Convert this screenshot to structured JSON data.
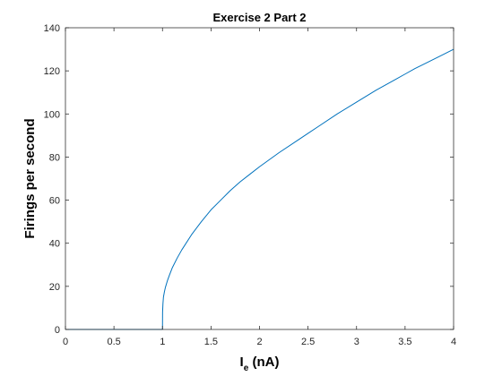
{
  "chart_data": {
    "type": "line",
    "title": "Exercise 2 Part 2",
    "xlabel": {
      "main": "I",
      "subscript": "e",
      "suffix": " (nA)"
    },
    "ylabel": "Firings per second",
    "xlim": [
      0,
      4
    ],
    "ylim": [
      0,
      140
    ],
    "xticks": [
      0,
      0.5,
      1,
      1.5,
      2,
      2.5,
      3,
      3.5,
      4
    ],
    "xtick_labels": [
      "0",
      "0.5",
      "1",
      "1.5",
      "2",
      "2.5",
      "3",
      "3.5",
      "4"
    ],
    "yticks": [
      0,
      20,
      40,
      60,
      80,
      100,
      120,
      140
    ],
    "ytick_labels": [
      "0",
      "20",
      "40",
      "60",
      "80",
      "100",
      "120",
      "140"
    ],
    "grid": false,
    "legend": "none",
    "line_color": "#0072BD",
    "series": [
      {
        "x": [
          0,
          0.5,
          0.99,
          1.0,
          1.001,
          1.005,
          1.01,
          1.02,
          1.03,
          1.05,
          1.07,
          1.1,
          1.15,
          1.2,
          1.3,
          1.4,
          1.5,
          1.6,
          1.7,
          1.8,
          1.9,
          2.0,
          2.2,
          2.4,
          2.5,
          2.6,
          2.8,
          3.0,
          3.2,
          3.4,
          3.5,
          3.6,
          3.8,
          4.0
        ],
        "y": [
          0,
          0,
          0,
          0,
          8,
          12,
          15,
          17.5,
          19.5,
          22.5,
          25,
          28.5,
          33,
          37,
          44,
          50,
          55.5,
          60,
          64.5,
          68.5,
          72,
          75.5,
          82,
          88,
          91,
          94,
          100,
          105.5,
          111,
          116,
          118.5,
          121,
          125.5,
          130
        ]
      }
    ]
  }
}
